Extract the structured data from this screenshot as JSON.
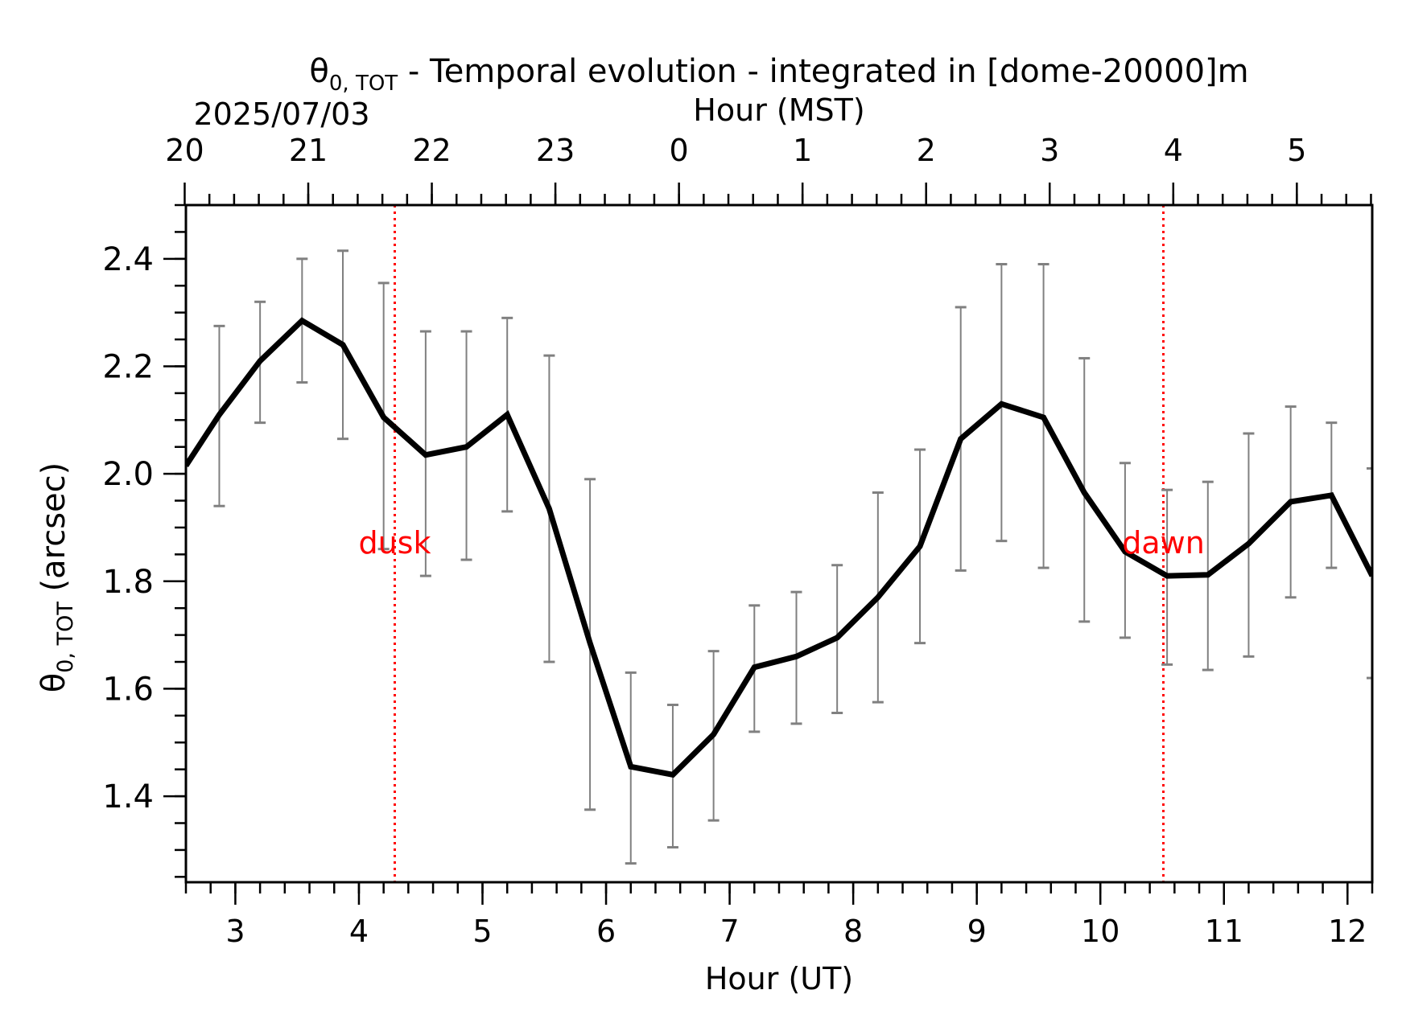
{
  "chart_data": {
    "type": "line",
    "title_main": "θ",
    "title_sub": "0, TOT",
    "title_rest": " - Temporal evolution - integrated in [dome-20000]m",
    "date_label": "2025/07/03",
    "top_xlabel": "Hour (MST)",
    "xlabel": "Hour (UT)",
    "ylabel_main": "θ",
    "ylabel_sub": "0, TOT",
    "ylabel_rest": " (arcsec)",
    "xlim": [
      2.6,
      12.2
    ],
    "ylim": [
      1.24,
      2.5
    ],
    "x_ticks": [
      3,
      4,
      5,
      6,
      7,
      8,
      9,
      10,
      11,
      12
    ],
    "x_tick_labels": [
      "3",
      "4",
      "5",
      "6",
      "7",
      "8",
      "9",
      "10",
      "11",
      "12"
    ],
    "y_ticks": [
      1.4,
      1.6,
      1.8,
      2.0,
      2.2,
      2.4
    ],
    "y_tick_labels": [
      "1.4",
      "1.6",
      "1.8",
      "2.0",
      "2.2",
      "2.4"
    ],
    "top_ticks": [
      2.59,
      3.59,
      4.59,
      5.59,
      6.59,
      7.59,
      8.59,
      9.59,
      10.59,
      11.59
    ],
    "top_tick_labels": [
      "20",
      "21",
      "22",
      "23",
      "0",
      "1",
      "2",
      "3",
      "4",
      "5"
    ],
    "series": [
      {
        "x": [
          2.6,
          2.87,
          3.2,
          3.54,
          3.87,
          4.2,
          4.54,
          4.87,
          5.2,
          5.54,
          5.87,
          6.2,
          6.54,
          6.87,
          7.2,
          7.54,
          7.87,
          8.2,
          8.54,
          8.87,
          9.2,
          9.54,
          9.87,
          10.2,
          10.54,
          10.87,
          11.2,
          11.54,
          11.87,
          12.2
        ],
        "values": [
          2.015,
          2.11,
          2.21,
          2.285,
          2.24,
          2.105,
          2.035,
          2.05,
          2.11,
          1.935,
          1.685,
          1.455,
          1.44,
          1.515,
          1.64,
          1.66,
          1.695,
          1.77,
          1.865,
          2.065,
          2.13,
          2.105,
          1.965,
          1.855,
          1.81,
          1.812,
          1.87,
          1.948,
          1.96,
          1.81
        ],
        "err_low": [
          null,
          1.94,
          2.095,
          2.17,
          2.065,
          1.86,
          1.81,
          1.84,
          1.93,
          1.65,
          1.375,
          1.275,
          1.305,
          1.355,
          1.52,
          1.535,
          1.555,
          1.575,
          1.685,
          1.82,
          1.875,
          1.825,
          1.725,
          1.695,
          1.645,
          1.635,
          1.66,
          1.77,
          1.825,
          1.62
        ],
        "err_high": [
          null,
          2.275,
          2.32,
          2.4,
          2.415,
          2.355,
          2.265,
          2.265,
          2.29,
          2.22,
          1.99,
          1.63,
          1.57,
          1.67,
          1.755,
          1.78,
          1.83,
          1.965,
          2.045,
          2.31,
          2.39,
          2.39,
          2.215,
          2.02,
          1.97,
          1.985,
          2.075,
          2.125,
          2.095,
          2.01
        ]
      }
    ],
    "vlines": [
      {
        "x": 4.29,
        "label": "dusk",
        "color": "#ff0000"
      },
      {
        "x": 10.51,
        "label": "dawn",
        "color": "#ff0000"
      }
    ],
    "line_color": "#000000",
    "errorbar_color": "#808080"
  }
}
